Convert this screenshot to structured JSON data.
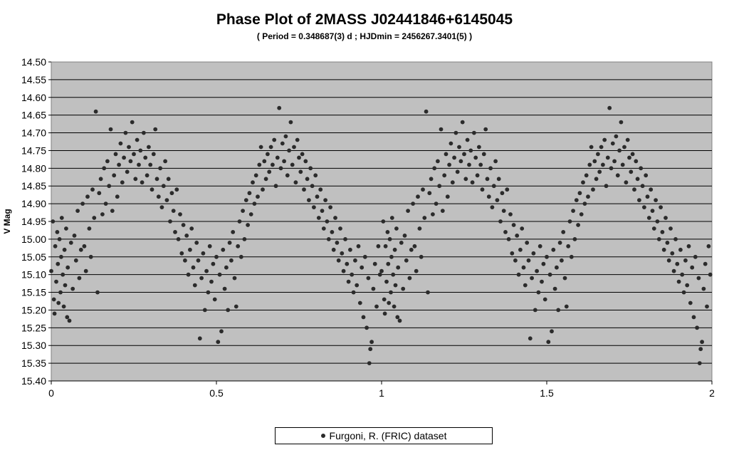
{
  "chart_data": {
    "type": "scatter",
    "title": "Phase Plot of 2MASS J02441846+6145045",
    "subtitle": "( Period = 0.348687(3) d ; HJDmin = 2456267.3401(5) )",
    "xlabel": "",
    "ylabel": "V Mag",
    "xlim": [
      0,
      2
    ],
    "ylim": [
      14.5,
      15.4
    ],
    "y_inverted": true,
    "grid": true,
    "legend_position": "bottom",
    "x_ticks": [
      "0",
      "0.5",
      "1",
      "1.5",
      "2"
    ],
    "y_ticks": [
      "14.50",
      "14.55",
      "14.60",
      "14.65",
      "14.70",
      "14.75",
      "14.80",
      "14.85",
      "14.90",
      "14.95",
      "15.00",
      "15.05",
      "15.10",
      "15.15",
      "15.20",
      "15.25",
      "15.30",
      "15.35",
      "15.40"
    ],
    "colors": {
      "plot_background": "#c0c0c0",
      "marker": "#2b2b2b",
      "gridline": "#000000"
    },
    "series": [
      {
        "name": "Furgoni, R. (FRIC) dataset",
        "marker": "circle",
        "points": [
          [
            0.0,
            15.09
          ],
          [
            0.005,
            14.95
          ],
          [
            0.008,
            15.17
          ],
          [
            0.01,
            15.21
          ],
          [
            0.012,
            15.02
          ],
          [
            0.015,
            15.12
          ],
          [
            0.018,
            14.98
          ],
          [
            0.02,
            15.07
          ],
          [
            0.022,
            15.18
          ],
          [
            0.025,
            15.0
          ],
          [
            0.028,
            15.15
          ],
          [
            0.03,
            15.05
          ],
          [
            0.032,
            14.94
          ],
          [
            0.035,
            15.1
          ],
          [
            0.038,
            15.19
          ],
          [
            0.04,
            15.03
          ],
          [
            0.042,
            15.13
          ],
          [
            0.045,
            14.97
          ],
          [
            0.048,
            15.22
          ],
          [
            0.05,
            15.08
          ],
          [
            0.055,
            15.23
          ],
          [
            0.06,
            15.01
          ],
          [
            0.065,
            15.14
          ],
          [
            0.07,
            14.99
          ],
          [
            0.075,
            15.06
          ],
          [
            0.08,
            14.92
          ],
          [
            0.085,
            15.11
          ],
          [
            0.09,
            15.03
          ],
          [
            0.095,
            14.9
          ],
          [
            0.1,
            15.02
          ],
          [
            0.105,
            15.09
          ],
          [
            0.11,
            14.88
          ],
          [
            0.115,
            14.97
          ],
          [
            0.12,
            15.05
          ],
          [
            0.125,
            14.86
          ],
          [
            0.13,
            14.94
          ],
          [
            0.135,
            14.64
          ],
          [
            0.14,
            15.15
          ],
          [
            0.145,
            14.87
          ],
          [
            0.15,
            14.83
          ],
          [
            0.155,
            14.93
          ],
          [
            0.16,
            14.8
          ],
          [
            0.165,
            14.9
          ],
          [
            0.17,
            14.78
          ],
          [
            0.175,
            14.85
          ],
          [
            0.18,
            14.69
          ],
          [
            0.185,
            14.92
          ],
          [
            0.19,
            14.82
          ],
          [
            0.195,
            14.76
          ],
          [
            0.2,
            14.88
          ],
          [
            0.205,
            14.79
          ],
          [
            0.21,
            14.73
          ],
          [
            0.215,
            14.84
          ],
          [
            0.22,
            14.77
          ],
          [
            0.225,
            14.7
          ],
          [
            0.23,
            14.81
          ],
          [
            0.235,
            14.74
          ],
          [
            0.24,
            14.78
          ],
          [
            0.245,
            14.67
          ],
          [
            0.25,
            14.76
          ],
          [
            0.255,
            14.83
          ],
          [
            0.26,
            14.72
          ],
          [
            0.265,
            14.79
          ],
          [
            0.27,
            14.75
          ],
          [
            0.275,
            14.84
          ],
          [
            0.28,
            14.7
          ],
          [
            0.285,
            14.77
          ],
          [
            0.29,
            14.82
          ],
          [
            0.295,
            14.74
          ],
          [
            0.3,
            14.79
          ],
          [
            0.305,
            14.86
          ],
          [
            0.31,
            14.76
          ],
          [
            0.315,
            14.69
          ],
          [
            0.32,
            14.83
          ],
          [
            0.325,
            14.88
          ],
          [
            0.33,
            14.8
          ],
          [
            0.335,
            14.91
          ],
          [
            0.34,
            14.85
          ],
          [
            0.345,
            14.78
          ],
          [
            0.35,
            14.89
          ],
          [
            0.355,
            14.83
          ],
          [
            0.36,
            14.95
          ],
          [
            0.365,
            14.87
          ],
          [
            0.37,
            14.92
          ],
          [
            0.375,
            14.98
          ],
          [
            0.38,
            14.86
          ],
          [
            0.385,
            15.0
          ],
          [
            0.39,
            14.93
          ],
          [
            0.395,
            15.04
          ],
          [
            0.4,
            14.96
          ],
          [
            0.405,
            15.06
          ],
          [
            0.41,
            14.99
          ],
          [
            0.415,
            15.1
          ],
          [
            0.42,
            15.03
          ],
          [
            0.425,
            14.97
          ],
          [
            0.43,
            15.08
          ],
          [
            0.435,
            15.13
          ],
          [
            0.44,
            15.01
          ],
          [
            0.445,
            15.06
          ],
          [
            0.45,
            15.28
          ],
          [
            0.455,
            15.11
          ],
          [
            0.46,
            15.04
          ],
          [
            0.465,
            15.2
          ],
          [
            0.47,
            15.09
          ],
          [
            0.475,
            15.15
          ],
          [
            0.48,
            15.02
          ],
          [
            0.485,
            15.12
          ],
          [
            0.49,
            15.07
          ],
          [
            0.495,
            15.17
          ],
          [
            0.5,
            15.05
          ],
          [
            0.505,
            15.29
          ],
          [
            0.51,
            15.1
          ],
          [
            0.515,
            15.26
          ],
          [
            0.52,
            15.03
          ],
          [
            0.525,
            15.14
          ],
          [
            0.53,
            15.08
          ],
          [
            0.535,
            15.2
          ],
          [
            0.54,
            15.01
          ],
          [
            0.545,
            15.06
          ],
          [
            0.55,
            14.98
          ],
          [
            0.555,
            15.11
          ],
          [
            0.56,
            15.19
          ],
          [
            0.565,
            15.02
          ],
          [
            0.57,
            14.95
          ],
          [
            0.575,
            15.05
          ],
          [
            0.58,
            14.92
          ],
          [
            0.585,
            15.0
          ],
          [
            0.59,
            14.89
          ],
          [
            0.595,
            14.96
          ],
          [
            0.6,
            14.87
          ],
          [
            0.605,
            14.93
          ],
          [
            0.61,
            14.84
          ],
          [
            0.615,
            14.9
          ],
          [
            0.62,
            14.82
          ],
          [
            0.625,
            14.88
          ],
          [
            0.63,
            14.79
          ],
          [
            0.635,
            14.74
          ],
          [
            0.64,
            14.86
          ],
          [
            0.645,
            14.78
          ],
          [
            0.65,
            14.83
          ],
          [
            0.655,
            14.76
          ],
          [
            0.66,
            14.81
          ],
          [
            0.665,
            14.74
          ],
          [
            0.67,
            14.79
          ],
          [
            0.675,
            14.72
          ],
          [
            0.68,
            14.85
          ],
          [
            0.685,
            14.77
          ],
          [
            0.69,
            14.63
          ],
          [
            0.695,
            14.8
          ],
          [
            0.7,
            14.73
          ],
          [
            0.705,
            14.78
          ],
          [
            0.71,
            14.71
          ],
          [
            0.715,
            14.82
          ],
          [
            0.72,
            14.75
          ],
          [
            0.725,
            14.67
          ],
          [
            0.73,
            14.79
          ],
          [
            0.735,
            14.74
          ],
          [
            0.74,
            14.84
          ],
          [
            0.745,
            14.72
          ],
          [
            0.75,
            14.77
          ],
          [
            0.755,
            14.81
          ],
          [
            0.76,
            14.76
          ],
          [
            0.765,
            14.86
          ],
          [
            0.77,
            14.78
          ],
          [
            0.775,
            14.83
          ],
          [
            0.78,
            14.89
          ],
          [
            0.785,
            14.8
          ],
          [
            0.79,
            14.85
          ],
          [
            0.795,
            14.91
          ],
          [
            0.8,
            14.82
          ],
          [
            0.805,
            14.88
          ],
          [
            0.81,
            14.94
          ],
          [
            0.815,
            14.86
          ],
          [
            0.82,
            14.92
          ],
          [
            0.825,
            14.97
          ],
          [
            0.83,
            14.89
          ],
          [
            0.835,
            14.95
          ],
          [
            0.84,
            15.0
          ],
          [
            0.845,
            14.91
          ],
          [
            0.85,
            14.98
          ],
          [
            0.855,
            15.03
          ],
          [
            0.86,
            14.94
          ],
          [
            0.865,
            15.01
          ],
          [
            0.87,
            15.06
          ],
          [
            0.875,
            14.97
          ],
          [
            0.88,
            15.04
          ],
          [
            0.885,
            15.09
          ],
          [
            0.89,
            15.0
          ],
          [
            0.895,
            15.07
          ],
          [
            0.9,
            15.12
          ],
          [
            0.905,
            15.03
          ],
          [
            0.91,
            15.1
          ],
          [
            0.915,
            15.15
          ],
          [
            0.92,
            15.06
          ],
          [
            0.925,
            15.13
          ],
          [
            0.93,
            15.02
          ],
          [
            0.935,
            15.18
          ],
          [
            0.94,
            15.08
          ],
          [
            0.945,
            15.22
          ],
          [
            0.95,
            15.05
          ],
          [
            0.955,
            15.25
          ],
          [
            0.96,
            15.11
          ],
          [
            0.963,
            15.35
          ],
          [
            0.966,
            15.31
          ],
          [
            0.97,
            15.29
          ],
          [
            0.975,
            15.14
          ],
          [
            0.98,
            15.07
          ],
          [
            0.985,
            15.19
          ],
          [
            0.99,
            15.02
          ],
          [
            0.995,
            15.1
          ]
        ]
      }
    ]
  }
}
